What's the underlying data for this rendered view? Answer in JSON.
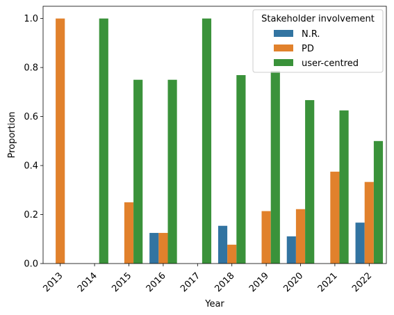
{
  "chart_data": {
    "type": "bar",
    "xlabel": "Year",
    "ylabel": "Proportion",
    "ylim": [
      0,
      1.05
    ],
    "yticks": [
      "0.0",
      "0.2",
      "0.4",
      "0.6",
      "0.8",
      "1.0"
    ],
    "categories": [
      "2013",
      "2014",
      "2015",
      "2016",
      "2017",
      "2018",
      "2019",
      "2020",
      "2021",
      "2022"
    ],
    "legend": {
      "title": "Stakeholder involvement",
      "placement": "top-right"
    },
    "series": [
      {
        "name": "N.R.",
        "color": "#3274a1",
        "values": [
          0,
          0,
          0,
          0.125,
          0,
          0.154,
          0,
          0.111,
          0,
          0.167
        ]
      },
      {
        "name": "PD",
        "color": "#e1812c",
        "values": [
          1.0,
          0,
          0.25,
          0.125,
          0,
          0.077,
          0.214,
          0.222,
          0.375,
          0.333
        ]
      },
      {
        "name": "user-centred",
        "color": "#3a923a",
        "values": [
          0,
          1.0,
          0.75,
          0.75,
          1.0,
          0.769,
          0.786,
          0.667,
          0.625,
          0.5
        ]
      }
    ],
    "grid": false
  }
}
